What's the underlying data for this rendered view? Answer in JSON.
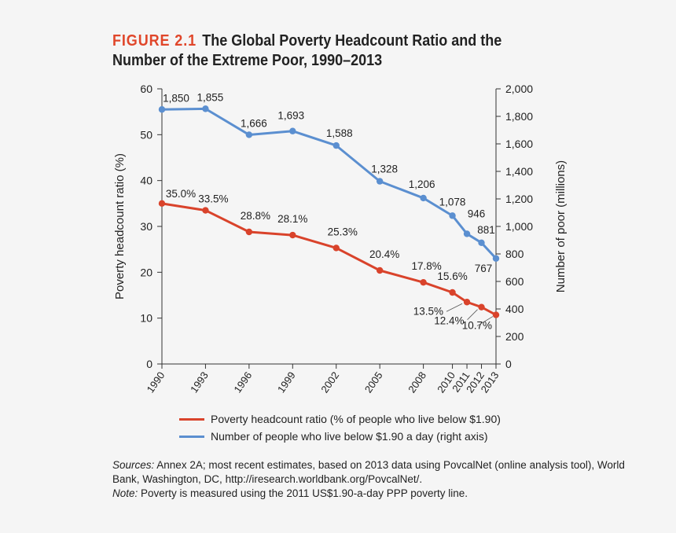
{
  "figure_label": "FIGURE 2.1",
  "figure_title": "The Global Poverty Headcount Ratio and the Number of the Extreme Poor, 1990–2013",
  "chart_data": {
    "type": "line",
    "x": [
      1990,
      1993,
      1996,
      1999,
      2002,
      2005,
      2008,
      2010,
      2011,
      2012,
      2013
    ],
    "x_tick_labels": [
      "1990",
      "1993",
      "1996",
      "1999",
      "2002",
      "2005",
      "2008",
      "2010",
      "2011",
      "2012",
      "2013"
    ],
    "xlim": [
      1990,
      2013
    ],
    "left_axis": {
      "label": "Poverty headcount ratio (%)",
      "ylim": [
        0,
        60
      ],
      "ticks": [
        "0",
        "10",
        "20",
        "30",
        "40",
        "50",
        "60"
      ]
    },
    "right_axis": {
      "label": "Number of poor (millions)",
      "ylim": [
        0,
        2000
      ],
      "ticks": [
        "0",
        "200",
        "400",
        "600",
        "800",
        "1,000",
        "1,200",
        "1,400",
        "1,600",
        "1,800",
        "2,000"
      ]
    },
    "grid": false,
    "legend_placement": "bottom",
    "series": [
      {
        "name": "Poverty headcount ratio (% of people who live below $1.90)",
        "axis": "left",
        "color": "#d9432b",
        "values": [
          35.0,
          33.5,
          28.8,
          28.1,
          25.3,
          20.4,
          17.8,
          15.6,
          13.5,
          12.4,
          10.7
        ],
        "labels": [
          "35.0%",
          "33.5%",
          "28.8%",
          "28.1%",
          "25.3%",
          "20.4%",
          "17.8%",
          "15.6%",
          "13.5%",
          "12.4%",
          "10.7%"
        ]
      },
      {
        "name": "Number of people who live below $1.90 a day (right axis)",
        "axis": "right",
        "color": "#5b8fd0",
        "values": [
          1850,
          1855,
          1666,
          1693,
          1588,
          1328,
          1206,
          1078,
          946,
          881,
          767
        ],
        "labels": [
          "1,850",
          "1,855",
          "1,666",
          "1,693",
          "1,588",
          "1,328",
          "1,206",
          "1,078",
          "946",
          "881",
          "767"
        ]
      }
    ]
  },
  "sources": {
    "label": "Sources:",
    "text": " Annex 2A; most recent estimates, based on 2013 data using PovcalNet (online analysis tool), World Bank, Washington, DC, http://iresearch.worldbank.org/PovcalNet/.",
    "note_label": "Note:",
    "note_text": " Poverty is measured using the 2011 US$1.90-a-day PPP poverty line."
  }
}
